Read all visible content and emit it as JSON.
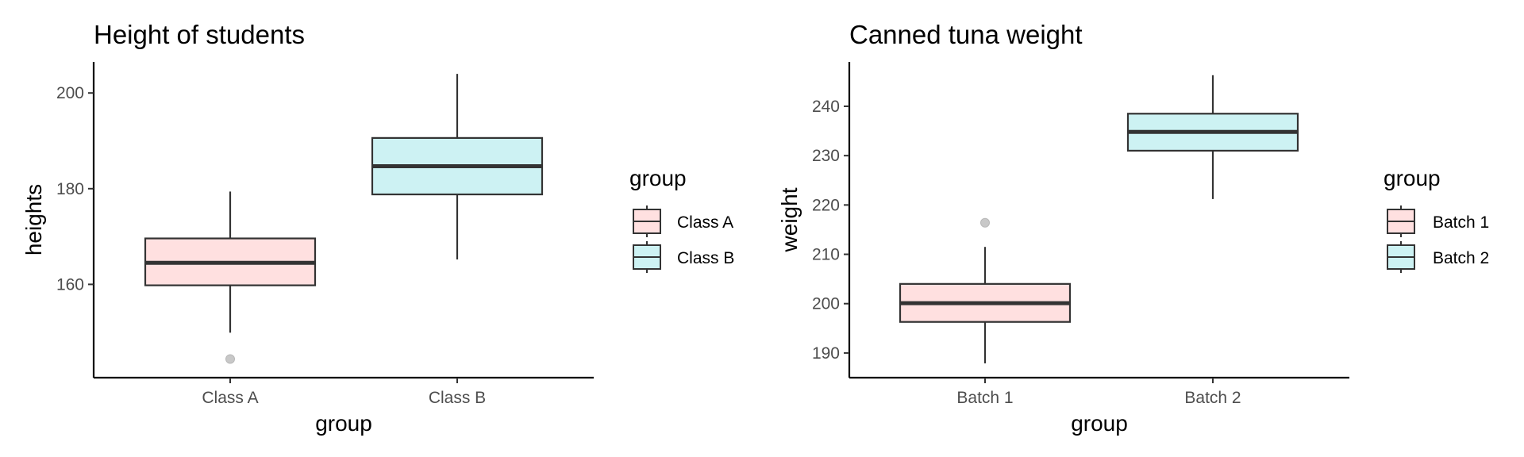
{
  "colors": {
    "series_a": "#FFE0E0",
    "series_b": "#CDF2F3",
    "stroke": "#333333",
    "outlier": "#c8c8c8",
    "axis": "#000000"
  },
  "chart_data": [
    {
      "type": "boxplot",
      "title": "Height of students",
      "xlabel": "group",
      "ylabel": "heights",
      "ylim": [
        140.5,
        206.5
      ],
      "yticks": [
        "160",
        "180",
        "200"
      ],
      "categories": [
        "Class A",
        "Class B"
      ],
      "legend": {
        "title": "group",
        "position": "right",
        "entries": [
          "Class A",
          "Class B"
        ]
      },
      "boxes": [
        {
          "category": "Class A",
          "whisker_low": 149.9,
          "q1": 159.8,
          "median": 164.5,
          "q3": 169.6,
          "whisker_high": 179.4,
          "outliers": [
            144.4
          ],
          "color": "#FFE0E0"
        },
        {
          "category": "Class B",
          "whisker_low": 165.2,
          "q1": 178.8,
          "median": 184.7,
          "q3": 190.6,
          "whisker_high": 204.0,
          "outliers": [],
          "color": "#CDF2F3"
        }
      ]
    },
    {
      "type": "boxplot",
      "title": "Canned tuna weight",
      "xlabel": "group",
      "ylabel": "weight",
      "ylim": [
        185,
        249
      ],
      "yticks": [
        "190",
        "200",
        "210",
        "220",
        "230",
        "240"
      ],
      "categories": [
        "Batch 1",
        "Batch 2"
      ],
      "legend": {
        "title": "group",
        "position": "right",
        "entries": [
          "Batch 1",
          "Batch 2"
        ]
      },
      "boxes": [
        {
          "category": "Batch 1",
          "whisker_low": 187.9,
          "q1": 196.3,
          "median": 200.1,
          "q3": 204.0,
          "whisker_high": 211.5,
          "outliers": [
            216.4
          ],
          "color": "#FFE0E0"
        },
        {
          "category": "Batch 2",
          "whisker_low": 221.2,
          "q1": 231.0,
          "median": 234.8,
          "q3": 238.5,
          "whisker_high": 246.3,
          "outliers": [],
          "color": "#CDF2F3"
        }
      ]
    }
  ]
}
